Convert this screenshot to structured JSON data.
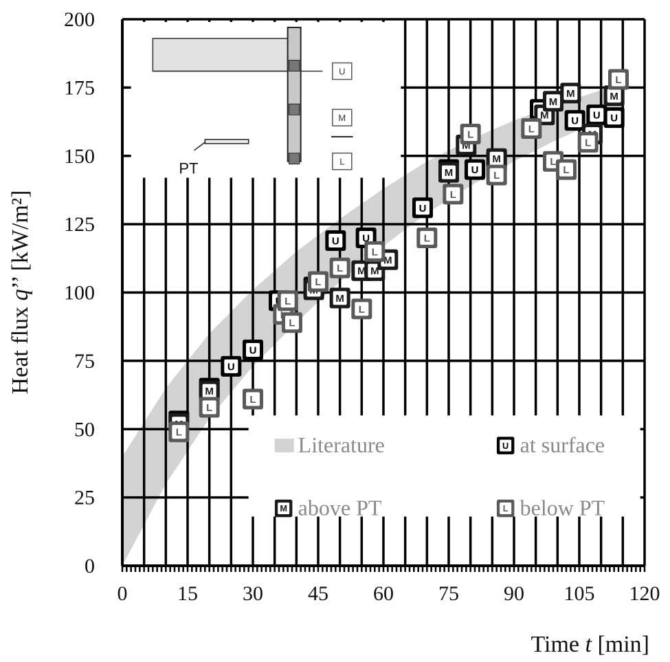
{
  "chart_data": {
    "type": "scatter",
    "title": "",
    "xlabel": "Time t [min]",
    "xlabel_parts": {
      "prefix": "Time ",
      "var": "t",
      "suffix": " [min]"
    },
    "ylabel": "Heat flux q'' [kW/m²]",
    "ylabel_parts": {
      "prefix": "Heat flux ",
      "var": "q",
      "prime": "’’",
      "suffix": " [kW/m²]"
    },
    "xlim": [
      0,
      120
    ],
    "ylim": [
      0,
      200
    ],
    "xticks": [
      "0",
      "15",
      "30",
      "45",
      "60",
      "75",
      "90",
      "105",
      "120"
    ],
    "yticks": [
      "0",
      "25",
      "50",
      "75",
      "100",
      "125",
      "150",
      "175",
      "200"
    ],
    "grid": true,
    "legend_position": "bottom-right",
    "legend": [
      {
        "key": "literature",
        "label": "Literature"
      },
      {
        "key": "surface",
        "label": "at surface"
      },
      {
        "key": "above",
        "label": "above PT"
      },
      {
        "key": "below",
        "label": "below PT"
      }
    ],
    "band": {
      "name": "Literature",
      "x": [
        0,
        10,
        20,
        30,
        40,
        50,
        60,
        70,
        80,
        90,
        100,
        110,
        115
      ],
      "lower": [
        0,
        30,
        54,
        73,
        89,
        104,
        117,
        129,
        139,
        148,
        156,
        163,
        166
      ],
      "upper": [
        40,
        65,
        85,
        101,
        115,
        127,
        138,
        148,
        156,
        163,
        169,
        174,
        176
      ]
    },
    "series": [
      {
        "key": "surface",
        "name": "at surface",
        "letter": "U",
        "edge": "#000000",
        "points": [
          [
            13,
            53
          ],
          [
            20,
            65
          ],
          [
            25,
            73
          ],
          [
            30,
            79
          ],
          [
            36,
            97
          ],
          [
            44,
            102
          ],
          [
            49,
            119
          ],
          [
            56,
            120
          ],
          [
            69,
            131
          ],
          [
            75,
            145
          ],
          [
            81,
            145
          ],
          [
            86,
            148
          ],
          [
            96,
            167
          ],
          [
            104,
            163
          ],
          [
            109,
            165
          ],
          [
            113,
            164
          ]
        ]
      },
      {
        "key": "above",
        "name": "above PT",
        "letter": "M",
        "edge": "#1a1a1a",
        "points": [
          [
            13,
            52
          ],
          [
            20,
            64
          ],
          [
            38,
            95
          ],
          [
            44,
            101
          ],
          [
            50,
            98
          ],
          [
            55,
            108
          ],
          [
            58,
            108
          ],
          [
            61,
            112
          ],
          [
            75,
            144
          ],
          [
            79,
            154
          ],
          [
            86,
            149
          ],
          [
            97,
            165
          ],
          [
            99,
            170
          ],
          [
            103,
            173
          ],
          [
            108,
            158
          ],
          [
            113,
            172
          ]
        ]
      },
      {
        "key": "below",
        "name": "below PT",
        "letter": "L",
        "edge": "#5a5a5a",
        "points": [
          [
            13,
            49
          ],
          [
            20,
            58
          ],
          [
            30,
            61
          ],
          [
            37,
            92
          ],
          [
            38,
            97
          ],
          [
            39,
            89
          ],
          [
            45,
            104
          ],
          [
            50,
            109
          ],
          [
            55,
            94
          ],
          [
            58,
            115
          ],
          [
            70,
            120
          ],
          [
            76,
            136
          ],
          [
            80,
            158
          ],
          [
            86,
            143
          ],
          [
            94,
            160
          ],
          [
            99,
            148
          ],
          [
            102,
            145
          ],
          [
            107,
            155
          ],
          [
            114,
            178
          ]
        ]
      }
    ],
    "inset": {
      "label": "PT",
      "sensors": [
        "U",
        "M",
        "L"
      ]
    }
  }
}
